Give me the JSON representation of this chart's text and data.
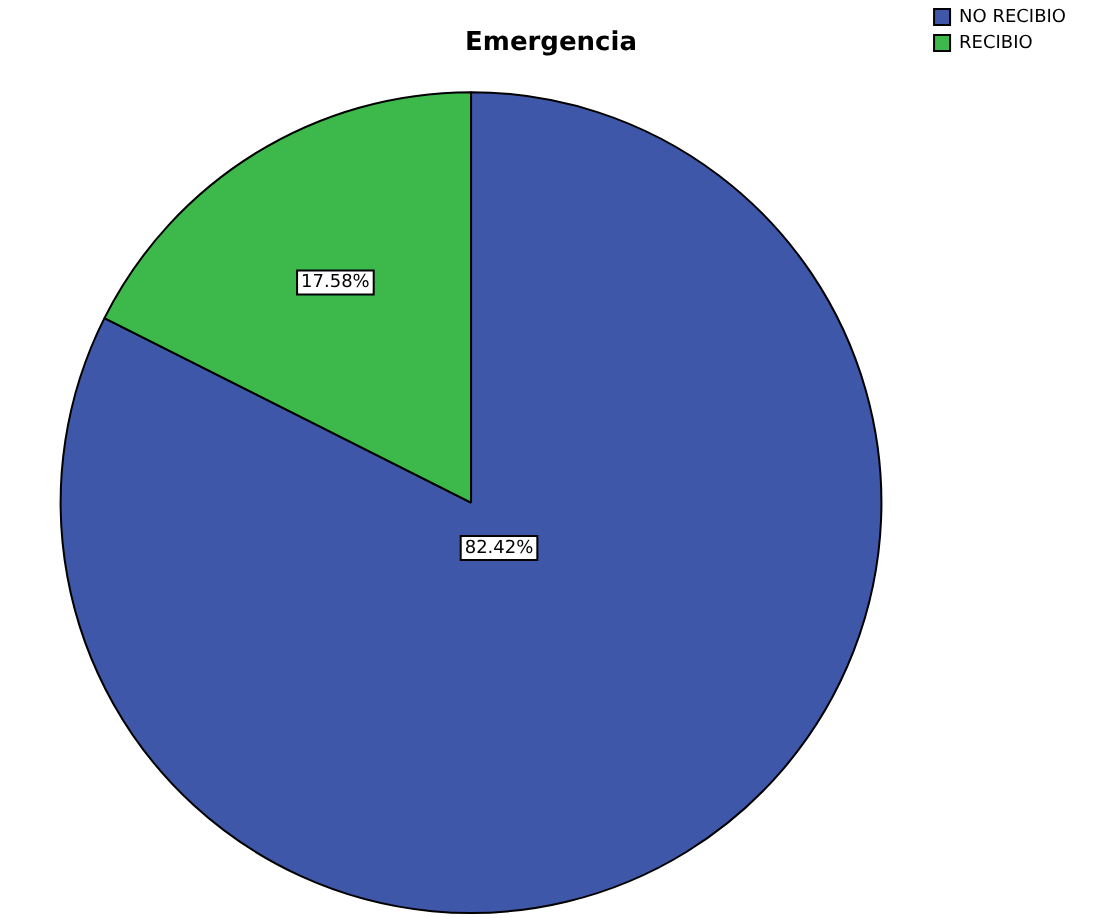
{
  "chart_data": {
    "type": "pie",
    "title": "Emergencia",
    "categories": [
      "NO RECIBIO",
      "RECIBIO"
    ],
    "values": [
      82.42,
      17.58
    ],
    "colors": [
      "#3f57a8",
      "#3cb94a"
    ],
    "value_labels": [
      "82.42%",
      "17.58%"
    ],
    "legend": "top right"
  }
}
